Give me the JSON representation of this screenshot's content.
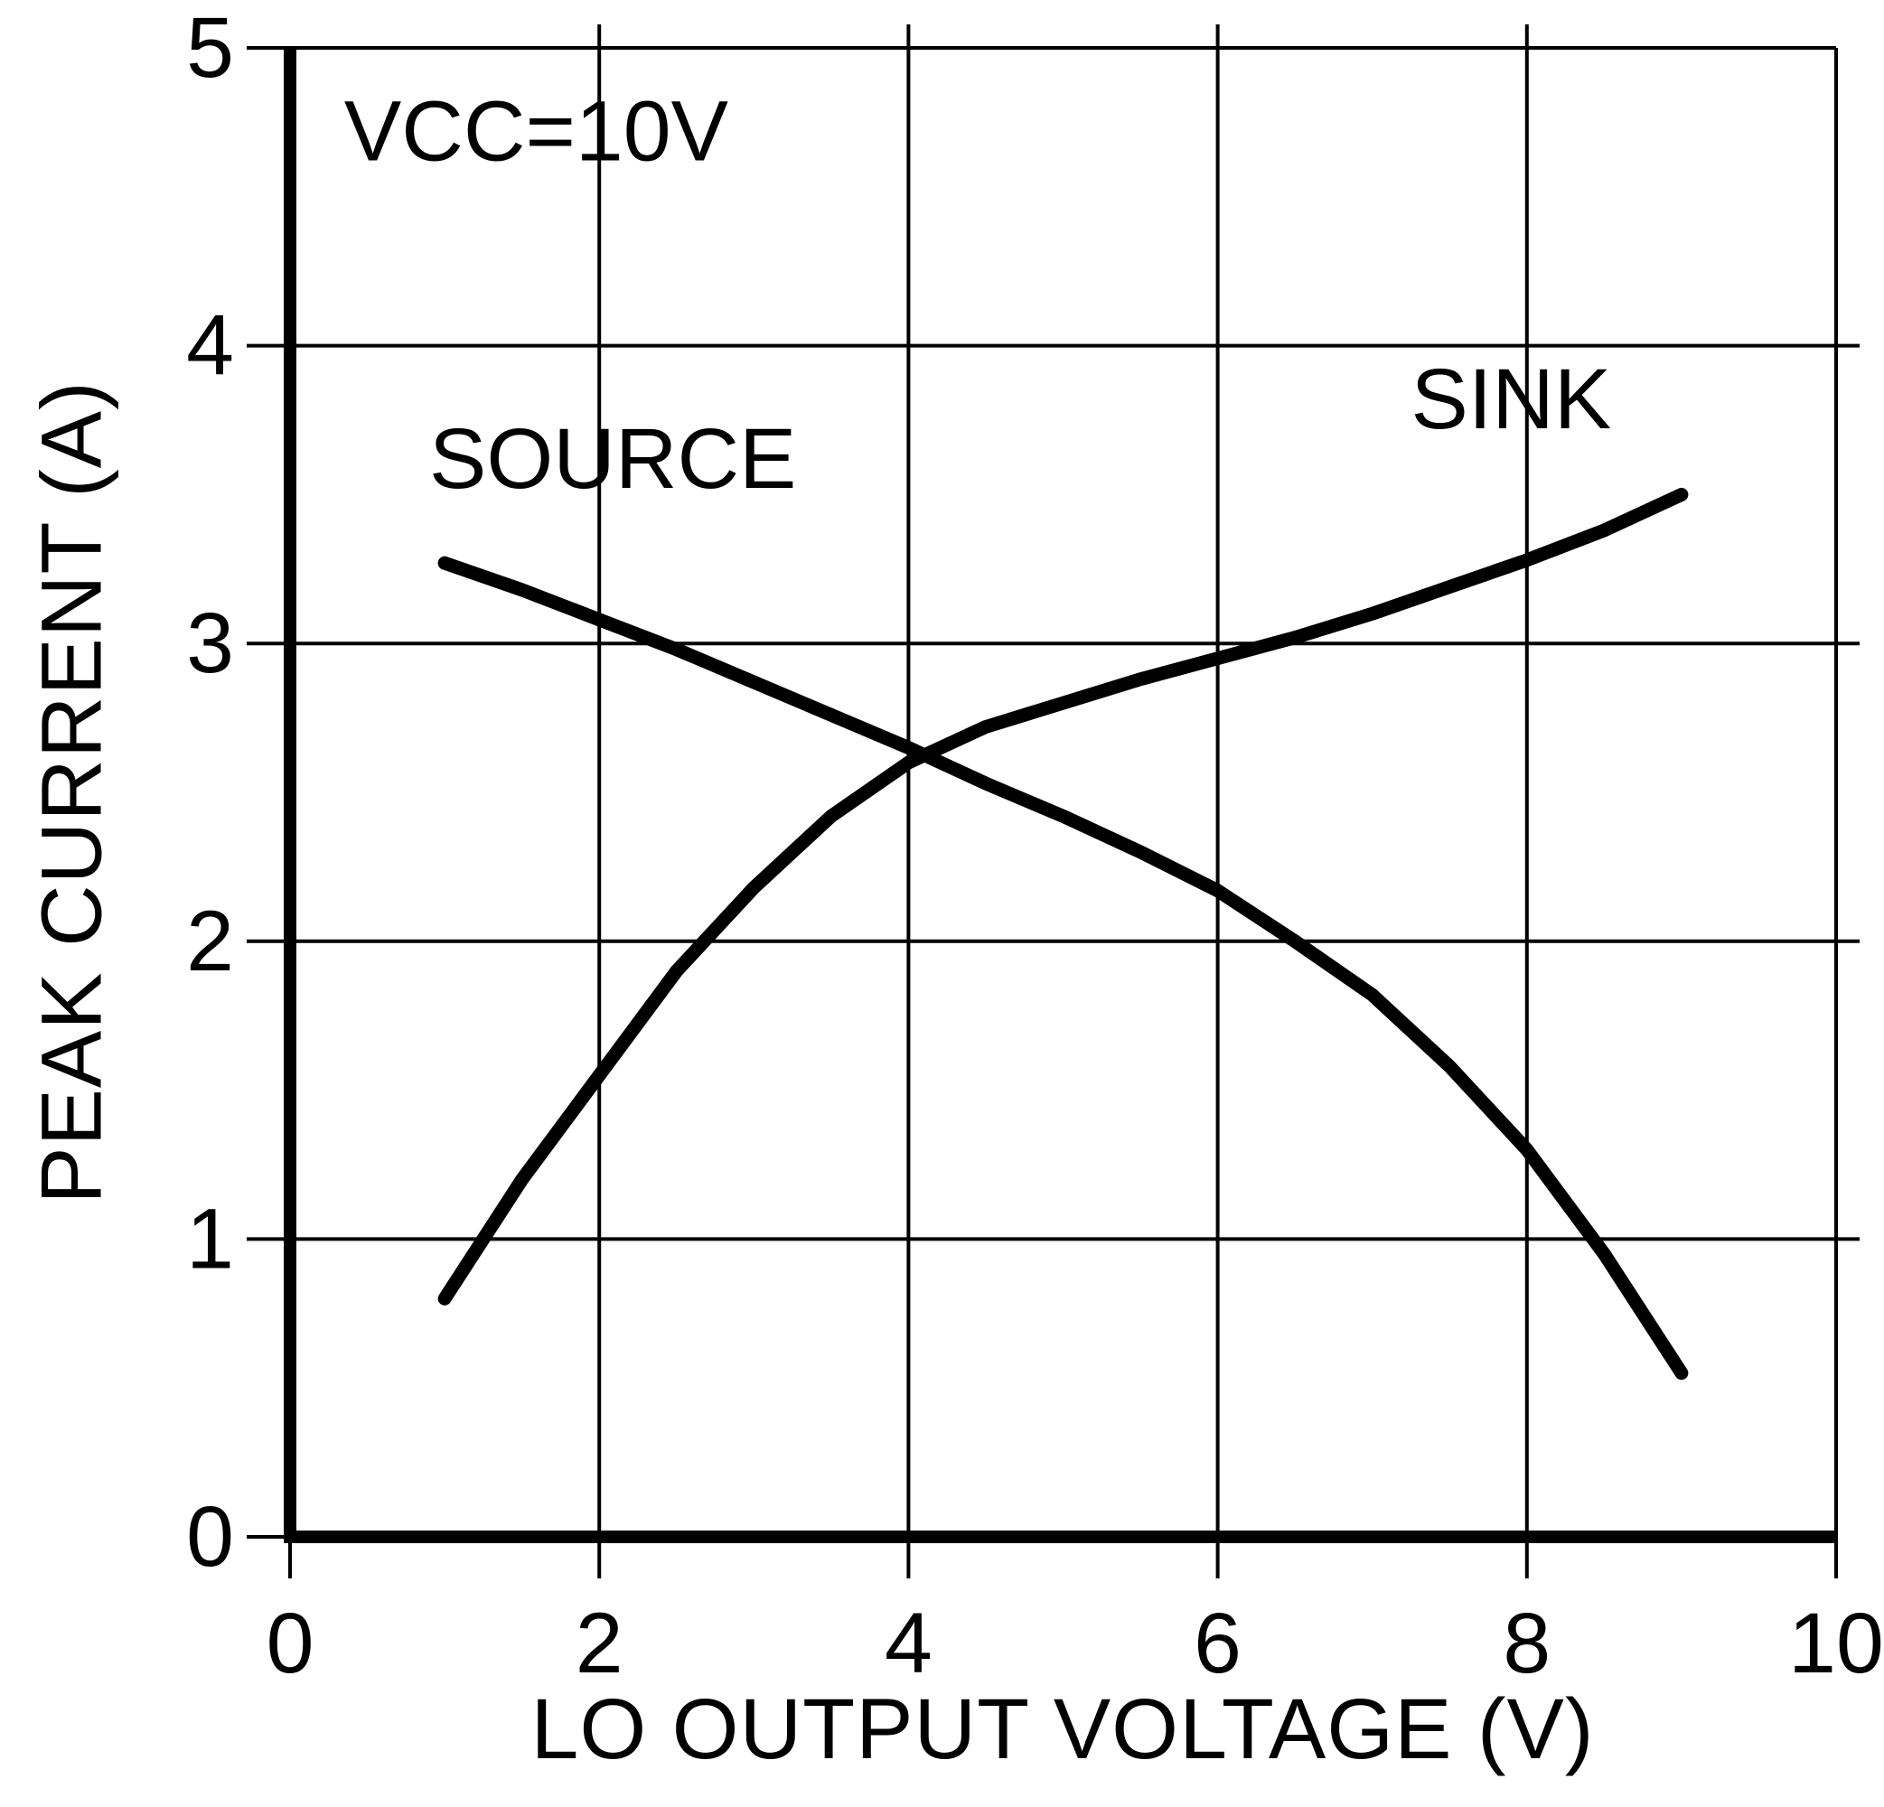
{
  "chart_data": {
    "type": "line",
    "title": "",
    "annotation": "VCC=10V",
    "annotation_pos": {
      "x": 0.35,
      "y": 4.72
    },
    "xlabel": "LO OUTPUT VOLTAGE (V)",
    "ylabel": "PEAK CURRENT (A)",
    "xlim": [
      0,
      10
    ],
    "ylim": [
      0,
      5
    ],
    "x_ticks": [
      0,
      2,
      4,
      6,
      8,
      10
    ],
    "y_ticks": [
      0,
      1,
      2,
      3,
      4,
      5
    ],
    "grid": true,
    "line_color": "#000000",
    "background": "#ffffff",
    "series": [
      {
        "name": "SOURCE",
        "label_pos": {
          "x": 0.9,
          "y": 3.62
        },
        "x": [
          1,
          1.5,
          2,
          2.5,
          3,
          3.5,
          4,
          4.5,
          5,
          5.5,
          6,
          6.5,
          7,
          7.5,
          8,
          8.5,
          9
        ],
        "y": [
          3.27,
          3.18,
          3.08,
          2.98,
          2.87,
          2.76,
          2.65,
          2.53,
          2.42,
          2.3,
          2.17,
          2.0,
          1.82,
          1.58,
          1.3,
          0.95,
          0.55
        ]
      },
      {
        "name": "SINK",
        "label_pos": {
          "x": 7.25,
          "y": 3.82
        },
        "x": [
          1,
          1.5,
          2,
          2.5,
          3,
          3.5,
          4,
          4.5,
          5,
          5.5,
          6,
          6.5,
          7,
          7.5,
          8,
          8.5,
          9
        ],
        "y": [
          0.8,
          1.2,
          1.55,
          1.9,
          2.18,
          2.42,
          2.6,
          2.72,
          2.8,
          2.88,
          2.95,
          3.02,
          3.1,
          3.19,
          3.28,
          3.38,
          3.5
        ]
      }
    ]
  }
}
